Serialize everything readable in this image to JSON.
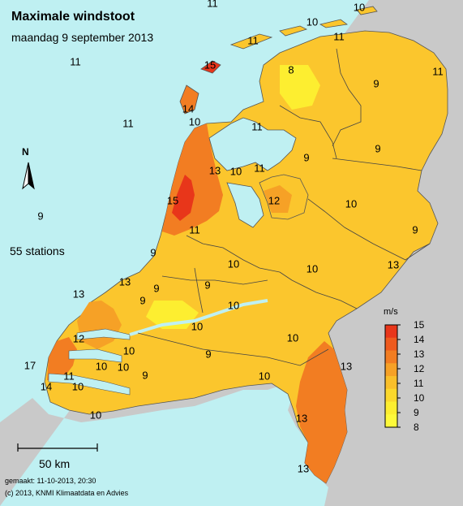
{
  "title": "Maximale windstoot",
  "subtitle": "maandag 9 september 2013",
  "station_count_label": "55 stations",
  "scale_label": "50 km",
  "made_label": "gemaakt: 11-10-2013, 20:30",
  "copyright": "(c) 2013, KNMI Klimaatdata en Advies",
  "north_label": "N",
  "legend": {
    "unit": "m/s",
    "ticks": [
      "15",
      "14",
      "13",
      "12",
      "11",
      "10",
      "9",
      "8"
    ],
    "colors": [
      "#e8361a",
      "#ee5a1e",
      "#f27d22",
      "#f6a126",
      "#f9bf2a",
      "#fbd82c",
      "#fdee30",
      "#fefa3a"
    ]
  },
  "colors": {
    "sea": "#bff0f2",
    "land_outside": "#c9c9c9",
    "base_land": "#fbc62d"
  },
  "values": [
    {
      "v": "11"
    },
    {
      "v": "10"
    },
    {
      "v": "10"
    },
    {
      "v": "11"
    },
    {
      "v": "11"
    },
    {
      "v": "15"
    },
    {
      "v": "11"
    },
    {
      "v": "8"
    },
    {
      "v": "11"
    },
    {
      "v": "9"
    },
    {
      "v": "11"
    },
    {
      "v": "14"
    },
    {
      "v": "10"
    },
    {
      "v": "11"
    },
    {
      "v": "9"
    },
    {
      "v": "9"
    },
    {
      "v": "13"
    },
    {
      "v": "10"
    },
    {
      "v": "11"
    },
    {
      "v": "12"
    },
    {
      "v": "15"
    },
    {
      "v": "10"
    },
    {
      "v": "9"
    },
    {
      "v": "11"
    },
    {
      "v": "9"
    },
    {
      "v": "9"
    },
    {
      "v": "10"
    },
    {
      "v": "10"
    },
    {
      "v": "13"
    },
    {
      "v": "9"
    },
    {
      "v": "9"
    },
    {
      "v": "13"
    },
    {
      "v": "9"
    },
    {
      "v": "10"
    },
    {
      "v": "13"
    },
    {
      "v": "12"
    },
    {
      "v": "10"
    },
    {
      "v": "10"
    },
    {
      "v": "10"
    },
    {
      "v": "9"
    },
    {
      "v": "17"
    },
    {
      "v": "10"
    },
    {
      "v": "11"
    },
    {
      "v": "10"
    },
    {
      "v": "9"
    },
    {
      "v": "13"
    },
    {
      "v": "10"
    },
    {
      "v": "14"
    },
    {
      "v": "10"
    },
    {
      "v": "10"
    },
    {
      "v": "13"
    },
    {
      "v": "13"
    }
  ]
}
